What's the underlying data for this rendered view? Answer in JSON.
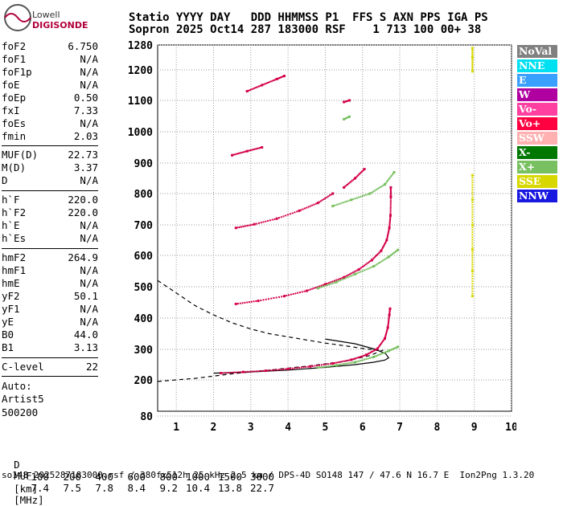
{
  "logo": {
    "top": "Lowell",
    "bottom": "DIGISONDE"
  },
  "header": {
    "line1": "Statio YYYY DAY   DDD HHMMSS P1  FFS S AXN PPS IGA PS",
    "line2": "Sopron 2025 Oct14 287 183000 RSF    1 713 100 00+ 38"
  },
  "params_group1": [
    {
      "name": "foF2",
      "value": "6.750"
    },
    {
      "name": "foF1",
      "value": "N/A"
    },
    {
      "name": "foF1p",
      "value": "N/A"
    },
    {
      "name": "foE",
      "value": "N/A"
    },
    {
      "name": "foEp",
      "value": "0.50"
    },
    {
      "name": "fxI",
      "value": "7.33"
    },
    {
      "name": "foEs",
      "value": "N/A"
    },
    {
      "name": "fmin",
      "value": "2.03"
    }
  ],
  "params_group2": [
    {
      "name": "MUF(D)",
      "value": "22.73"
    },
    {
      "name": "M(D)",
      "value": "3.37"
    },
    {
      "name": "D",
      "value": "N/A"
    }
  ],
  "params_group3": [
    {
      "name": "h`F",
      "value": "220.0"
    },
    {
      "name": "h`F2",
      "value": "220.0"
    },
    {
      "name": "h`E",
      "value": "N/A"
    },
    {
      "name": "h`Es",
      "value": "N/A"
    }
  ],
  "params_group4": [
    {
      "name": "hmF2",
      "value": "264.9"
    },
    {
      "name": "hmF1",
      "value": "N/A"
    },
    {
      "name": "hmE",
      "value": "N/A"
    },
    {
      "name": "yF2",
      "value": "50.1"
    },
    {
      "name": "yF1",
      "value": "N/A"
    },
    {
      "name": "yE",
      "value": "N/A"
    },
    {
      "name": "B0",
      "value": "44.0"
    },
    {
      "name": "B1",
      "value": "3.13"
    }
  ],
  "params_group5": [
    {
      "name": "C-level",
      "value": "22"
    }
  ],
  "auto": {
    "label": "Auto:",
    "artist": "Artist5",
    "code": "500200"
  },
  "legend": [
    {
      "label": "NoVal",
      "color": "#808080"
    },
    {
      "label": "NNE",
      "color": "#00e0f0"
    },
    {
      "label": "E",
      "color": "#3aa0ff"
    },
    {
      "label": "W",
      "color": "#b000a0"
    },
    {
      "label": "Vo-",
      "color": "#ff40a0"
    },
    {
      "label": "Vo+",
      "color": "#ff0040"
    },
    {
      "label": "SSW",
      "color": "#ffb0b0"
    },
    {
      "label": "X-",
      "color": "#007800"
    },
    {
      "label": "X+",
      "color": "#78c060"
    },
    {
      "label": "SSE",
      "color": "#d8d800"
    },
    {
      "label": "NNW",
      "color": "#1818e0"
    }
  ],
  "muf_table": {
    "d_label": "D",
    "muf_label": "MUF",
    "distances": [
      "100",
      "200",
      "400",
      "600",
      "800",
      "1000",
      "1500",
      "3000"
    ],
    "d_unit": "[km]",
    "mufs": [
      "7.4",
      "7.5",
      "7.8",
      "8.4",
      "9.2",
      "10.4",
      "13.8",
      "22.7"
    ],
    "muf_unit": "[MHz]"
  },
  "footer": "so148_2025287183000.rsf / 380fx512h 25 kHz 2.5 km / DPS-4D SO148 147 / 47.6 N 16.7 E  Ion2Png 1.3.20",
  "chart_data": {
    "type": "scatter",
    "xlim": [
      0.5,
      10
    ],
    "ylim": [
      80,
      1280
    ],
    "x_ticks": [
      "1",
      "2",
      "3",
      "4",
      "5",
      "6",
      "7",
      "8",
      "9",
      "10"
    ],
    "y_ticks": [
      "80",
      "200",
      "300",
      "400",
      "500",
      "600",
      "700",
      "800",
      "900",
      "1000",
      "1100",
      "1200",
      "1280"
    ],
    "grid": "dotted",
    "legend_position": "right",
    "series": [
      {
        "color": "#d4004a",
        "points": [
          [
            2.2,
            222
          ],
          [
            2.8,
            226
          ],
          [
            3.4,
            230
          ],
          [
            4.0,
            236
          ],
          [
            4.6,
            244
          ],
          [
            5.2,
            254
          ],
          [
            5.7,
            266
          ],
          [
            6.1,
            282
          ],
          [
            6.4,
            302
          ],
          [
            6.6,
            335
          ],
          [
            6.68,
            370
          ],
          [
            6.72,
            410
          ],
          [
            6.74,
            430
          ]
        ]
      },
      {
        "color": "#d4004a",
        "points": [
          [
            2.6,
            445
          ],
          [
            3.2,
            455
          ],
          [
            3.9,
            470
          ],
          [
            4.5,
            487
          ],
          [
            5.0,
            508
          ],
          [
            5.5,
            530
          ],
          [
            5.9,
            555
          ],
          [
            6.25,
            585
          ],
          [
            6.5,
            615
          ],
          [
            6.65,
            650
          ],
          [
            6.72,
            690
          ],
          [
            6.75,
            730
          ],
          [
            6.76,
            790
          ],
          [
            6.76,
            820
          ]
        ]
      },
      {
        "color": "#d4004a",
        "points": [
          [
            2.6,
            690
          ],
          [
            3.1,
            702
          ],
          [
            3.7,
            720
          ],
          [
            4.3,
            745
          ],
          [
            4.8,
            770
          ],
          [
            5.2,
            800
          ]
        ]
      },
      {
        "color": "#d4004a",
        "points": [
          [
            5.5,
            820
          ],
          [
            5.8,
            850
          ],
          [
            6.05,
            880
          ]
        ]
      },
      {
        "color": "#d4004a",
        "points": [
          [
            2.5,
            925
          ],
          [
            2.9,
            938
          ],
          [
            3.3,
            950
          ]
        ]
      },
      {
        "color": "#d4004a",
        "points": [
          [
            2.9,
            1130
          ],
          [
            3.3,
            1150
          ],
          [
            3.7,
            1170
          ],
          [
            3.9,
            1180
          ]
        ]
      },
      {
        "color": "#d4004a",
        "points": [
          [
            5.5,
            1095
          ],
          [
            5.65,
            1100
          ]
        ]
      },
      {
        "color": "#78c060",
        "points": [
          [
            4.8,
            240
          ],
          [
            5.3,
            248
          ],
          [
            5.8,
            258
          ],
          [
            6.3,
            275
          ],
          [
            6.7,
            295
          ],
          [
            6.95,
            308
          ]
        ]
      },
      {
        "color": "#78c060",
        "points": [
          [
            4.8,
            495
          ],
          [
            5.3,
            515
          ],
          [
            5.8,
            540
          ],
          [
            6.3,
            565
          ],
          [
            6.7,
            595
          ],
          [
            6.95,
            618
          ]
        ]
      },
      {
        "color": "#78c060",
        "points": [
          [
            5.2,
            760
          ],
          [
            5.7,
            780
          ],
          [
            6.2,
            800
          ],
          [
            6.6,
            830
          ],
          [
            6.85,
            870
          ]
        ]
      },
      {
        "color": "#78c060",
        "points": [
          [
            5.5,
            1040
          ],
          [
            5.65,
            1048
          ]
        ]
      },
      {
        "color": "#d8d800",
        "points": [
          [
            8.95,
            470
          ],
          [
            8.95,
            550
          ],
          [
            8.95,
            620
          ],
          [
            8.95,
            700
          ],
          [
            8.95,
            780
          ],
          [
            8.95,
            860
          ]
        ]
      },
      {
        "color": "#d8d800",
        "points": [
          [
            8.95,
            1195
          ],
          [
            8.95,
            1240
          ],
          [
            8.95,
            1270
          ]
        ]
      }
    ],
    "curves": [
      {
        "style": "solid",
        "points": [
          [
            2.0,
            222
          ],
          [
            3.0,
            226
          ],
          [
            4.0,
            232
          ],
          [
            5.0,
            241
          ],
          [
            5.8,
            250
          ],
          [
            6.3,
            258
          ],
          [
            6.6,
            265
          ],
          [
            6.7,
            272
          ],
          [
            6.62,
            286
          ],
          [
            6.35,
            300
          ],
          [
            5.8,
            318
          ],
          [
            5.0,
            333
          ]
        ]
      },
      {
        "style": "dashed",
        "points": [
          [
            0.5,
            195
          ],
          [
            1.5,
            205
          ],
          [
            2.5,
            220
          ],
          [
            3.5,
            232
          ],
          [
            4.5,
            245
          ],
          [
            5.5,
            260
          ],
          [
            6.2,
            280
          ],
          [
            6.6,
            300
          ]
        ]
      },
      {
        "style": "dashed",
        "points": [
          [
            0.5,
            520
          ],
          [
            1.0,
            480
          ],
          [
            1.5,
            440
          ],
          [
            2.0,
            410
          ],
          [
            2.5,
            385
          ],
          [
            3.0,
            365
          ],
          [
            3.5,
            350
          ],
          [
            4.0,
            340
          ],
          [
            4.5,
            330
          ],
          [
            5.0,
            320
          ],
          [
            5.5,
            312
          ],
          [
            6.0,
            303
          ],
          [
            6.5,
            295
          ]
        ]
      }
    ]
  }
}
